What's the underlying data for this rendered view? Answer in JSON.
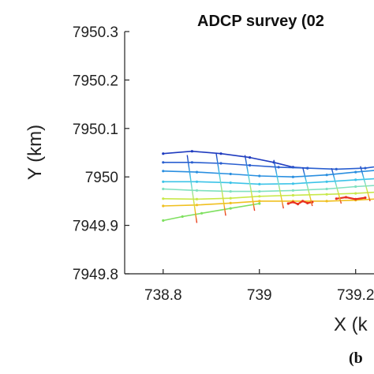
{
  "chart_data": {
    "type": "scatter",
    "title": "ADCP survey (02",
    "xlabel": "X (k",
    "ylabel": "Y (km)",
    "panel_label": "(b",
    "xlim": [
      738.72,
      739.33
    ],
    "ylim": [
      7949.8,
      7950.3
    ],
    "x_ticks": [
      "738.8",
      "739",
      "739.2"
    ],
    "x_tick_values": [
      738.8,
      739.0,
      739.2
    ],
    "y_ticks": [
      "7950.3",
      "7950.2",
      "7950.1",
      "7950",
      "7949.9",
      "7949.8"
    ],
    "y_tick_values": [
      7950.3,
      7950.2,
      7950.1,
      7950.0,
      7949.9,
      7949.8
    ],
    "colormap": [
      "#1f3bbf",
      "#2a7fd9",
      "#3cc3e8",
      "#7fe0c0",
      "#c8e84a",
      "#f0c020",
      "#e83020"
    ],
    "series": [
      {
        "color": "#1f3bbf",
        "x": [
          738.8,
          738.86,
          738.92,
          738.98,
          739.03,
          739.07,
          739.1
        ],
        "y": [
          7950.048,
          7950.053,
          7950.048,
          7950.04,
          7950.03,
          7950.02,
          7950.018
        ]
      },
      {
        "color": "#2a5fd0",
        "x": [
          738.8,
          738.86,
          738.92,
          738.98,
          739.04,
          739.1,
          739.16,
          739.22,
          739.28,
          739.33
        ],
        "y": [
          7950.03,
          7950.03,
          7950.028,
          7950.024,
          7950.02,
          7950.018,
          7950.016,
          7950.018,
          7950.026,
          7950.03
        ]
      },
      {
        "color": "#2a8fe0",
        "x": [
          738.8,
          738.87,
          738.94,
          739.0,
          739.07,
          739.14,
          739.2,
          739.27,
          739.33
        ],
        "y": [
          7950.012,
          7950.01,
          7950.006,
          7950.002,
          7950.0,
          7950.004,
          7950.01,
          7950.016,
          7950.02
        ]
      },
      {
        "color": "#3cc3e8",
        "x": [
          738.8,
          738.87,
          738.94,
          739.0,
          739.07,
          739.14,
          739.2,
          739.27,
          739.33
        ],
        "y": [
          7949.99,
          7949.99,
          7949.988,
          7949.985,
          7949.986,
          7949.99,
          7949.994,
          7949.998,
          7950.004
        ]
      },
      {
        "color": "#7fe0c0",
        "x": [
          738.8,
          738.87,
          738.94,
          739.0,
          739.07,
          739.14,
          739.2,
          739.27,
          739.33
        ],
        "y": [
          7949.975,
          7949.972,
          7949.97,
          7949.97,
          7949.972,
          7949.975,
          7949.98,
          7949.984,
          7949.988
        ]
      },
      {
        "color": "#c8e84a",
        "x": [
          738.8,
          738.87,
          738.94,
          739.0,
          739.07,
          739.14,
          739.2,
          739.27,
          739.33
        ],
        "y": [
          7949.955,
          7949.954,
          7949.956,
          7949.96,
          7949.962,
          7949.964,
          7949.966,
          7949.97,
          7949.975
        ]
      },
      {
        "color": "#f0c020",
        "x": [
          738.8,
          738.87,
          738.94,
          739.0,
          739.07,
          739.14,
          739.2,
          739.27,
          739.33
        ],
        "y": [
          7949.94,
          7949.942,
          7949.946,
          7949.95,
          7949.95,
          7949.95,
          7949.952,
          7949.956,
          7949.96
        ]
      },
      {
        "color": "#7fe060",
        "x": [
          738.8,
          738.84,
          738.88,
          738.94,
          739.0
        ],
        "y": [
          7949.91,
          7949.918,
          7949.925,
          7949.935,
          7949.945
        ]
      },
      {
        "color": "#e83020",
        "x": [
          739.06,
          739.07,
          739.08,
          739.09,
          739.1,
          739.11
        ],
        "y": [
          7949.945,
          7949.948,
          7949.944,
          7949.95,
          7949.946,
          7949.948
        ]
      },
      {
        "color": "#e83020",
        "x": [
          739.16,
          739.18,
          739.2,
          739.22
        ],
        "y": [
          7949.955,
          7949.958,
          7949.954,
          7949.957
        ]
      }
    ],
    "transects": [
      {
        "x": [
          738.85,
          738.87
        ],
        "y": [
          7950.045,
          7949.905
        ]
      },
      {
        "x": [
          738.91,
          738.93
        ],
        "y": [
          7950.05,
          7949.92
        ]
      },
      {
        "x": [
          738.97,
          738.99
        ],
        "y": [
          7950.045,
          7949.93
        ]
      },
      {
        "x": [
          739.03,
          739.05
        ],
        "y": [
          7950.035,
          7949.935
        ]
      },
      {
        "x": [
          739.09,
          739.11
        ],
        "y": [
          7950.02,
          7949.94
        ]
      },
      {
        "x": [
          739.15,
          739.17
        ],
        "y": [
          7950.018,
          7949.945
        ]
      },
      {
        "x": [
          739.21,
          739.23
        ],
        "y": [
          7950.022,
          7949.95
        ]
      },
      {
        "x": [
          739.27,
          739.29
        ],
        "y": [
          7950.028,
          7949.955
        ]
      }
    ]
  }
}
